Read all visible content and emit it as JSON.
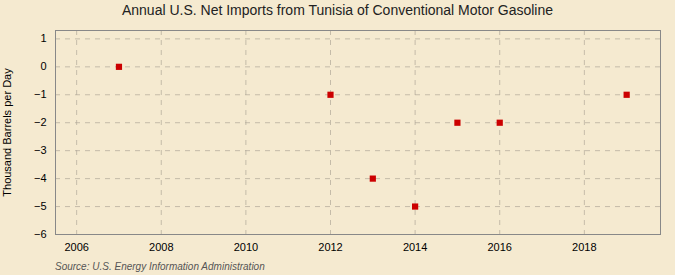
{
  "chart_data": {
    "type": "scatter",
    "title": "Annual U.S. Net Imports from Tunisia of Conventional Motor Gasoline",
    "ylabel": "Thousand Barrels per Day",
    "source": "Source: U.S. Energy Information Administration",
    "x": [
      2007,
      2012,
      2013,
      2014,
      2015,
      2016,
      2019
    ],
    "values": [
      0,
      -1,
      -4,
      -5,
      -2,
      -2,
      -1
    ],
    "xlim": [
      2005.5,
      2019.8
    ],
    "xticks": [
      2006,
      2008,
      2010,
      2012,
      2014,
      2016,
      2018
    ],
    "ylim": [
      -6,
      1.3
    ],
    "yticks": [
      1,
      0,
      -1,
      -2,
      -3,
      -4,
      -5,
      -6
    ],
    "color": "#cc0000",
    "marker": "square",
    "grid": true
  }
}
